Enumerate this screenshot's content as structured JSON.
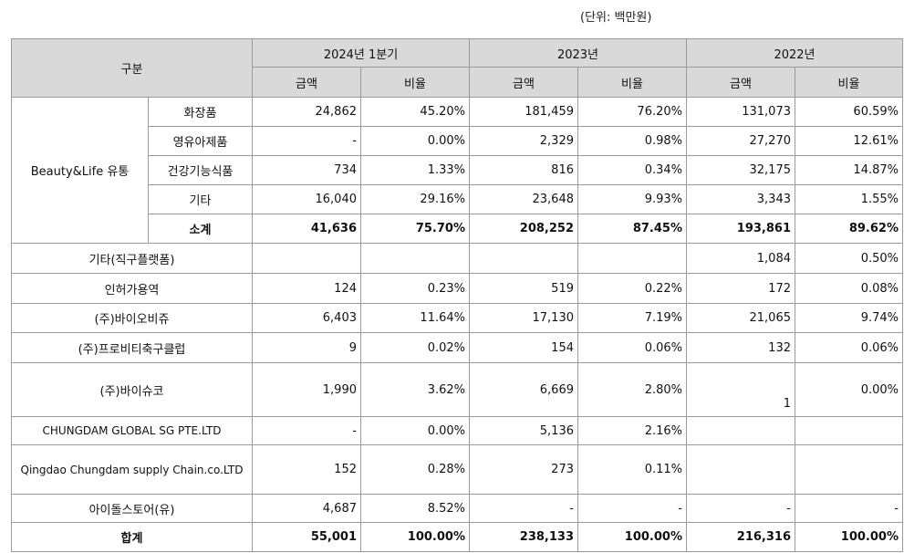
{
  "unit": "(단위: 백만원)",
  "header": {
    "category": "구분",
    "periods": [
      "2024년 1분기",
      "2023년",
      "2022년"
    ],
    "amount": "금액",
    "ratio": "비율"
  },
  "beauty": {
    "group_label": "Beauty&Life 유통",
    "rows": [
      {
        "label": "화장품",
        "v": [
          "24,862",
          "45.20%",
          "181,459",
          "76.20%",
          "131,073",
          "60.59%"
        ]
      },
      {
        "label": "영유아제품",
        "v": [
          "-",
          "0.00%",
          "2,329",
          "0.98%",
          "27,270",
          "12.61%"
        ]
      },
      {
        "label": "건강기능식품",
        "v": [
          "734",
          "1.33%",
          "816",
          "0.34%",
          "32,175",
          "14.87%"
        ]
      },
      {
        "label": "기타",
        "v": [
          "16,040",
          "29.16%",
          "23,648",
          "9.93%",
          "3,343",
          "1.55%"
        ]
      }
    ],
    "subtotal": {
      "label": "소계",
      "v": [
        "41,636",
        "75.70%",
        "208,252",
        "87.45%",
        "193,861",
        "89.62%"
      ]
    }
  },
  "rows": [
    {
      "label": "기타(직구플랫폼)",
      "v": [
        "",
        "",
        "",
        "",
        "1,084",
        "0.50%"
      ]
    },
    {
      "label": "인허가용역",
      "v": [
        "124",
        "0.23%",
        "519",
        "0.22%",
        "172",
        "0.08%"
      ]
    },
    {
      "label": "(주)바이오비쥬",
      "v": [
        "6,403",
        "11.64%",
        "17,130",
        "7.19%",
        "21,065",
        "9.74%"
      ]
    },
    {
      "label": "(주)프로비티축구클럽",
      "v": [
        "9",
        "0.02%",
        "154",
        "0.06%",
        "132",
        "0.06%"
      ]
    },
    {
      "label": "(주)바이슈코",
      "v": [
        "1,990",
        "3.62%",
        "6,669",
        "2.80%",
        "1",
        "0.00%"
      ]
    },
    {
      "label": "CHUNGDAM GLOBAL SG PTE.LTD",
      "v": [
        "-",
        "0.00%",
        "5,136",
        "2.16%",
        "",
        ""
      ]
    },
    {
      "label": "Qingdao Chungdam supply Chain.co.LTD",
      "v": [
        "152",
        "0.28%",
        "273",
        "0.11%",
        "",
        ""
      ]
    },
    {
      "label": "아이돌스토어(유)",
      "v": [
        "4,687",
        "8.52%",
        "-",
        "-",
        "-",
        "-"
      ]
    }
  ],
  "total": {
    "label": "합계",
    "v": [
      "55,001",
      "100.00%",
      "238,133",
      "100.00%",
      "216,316",
      "100.00%"
    ]
  }
}
